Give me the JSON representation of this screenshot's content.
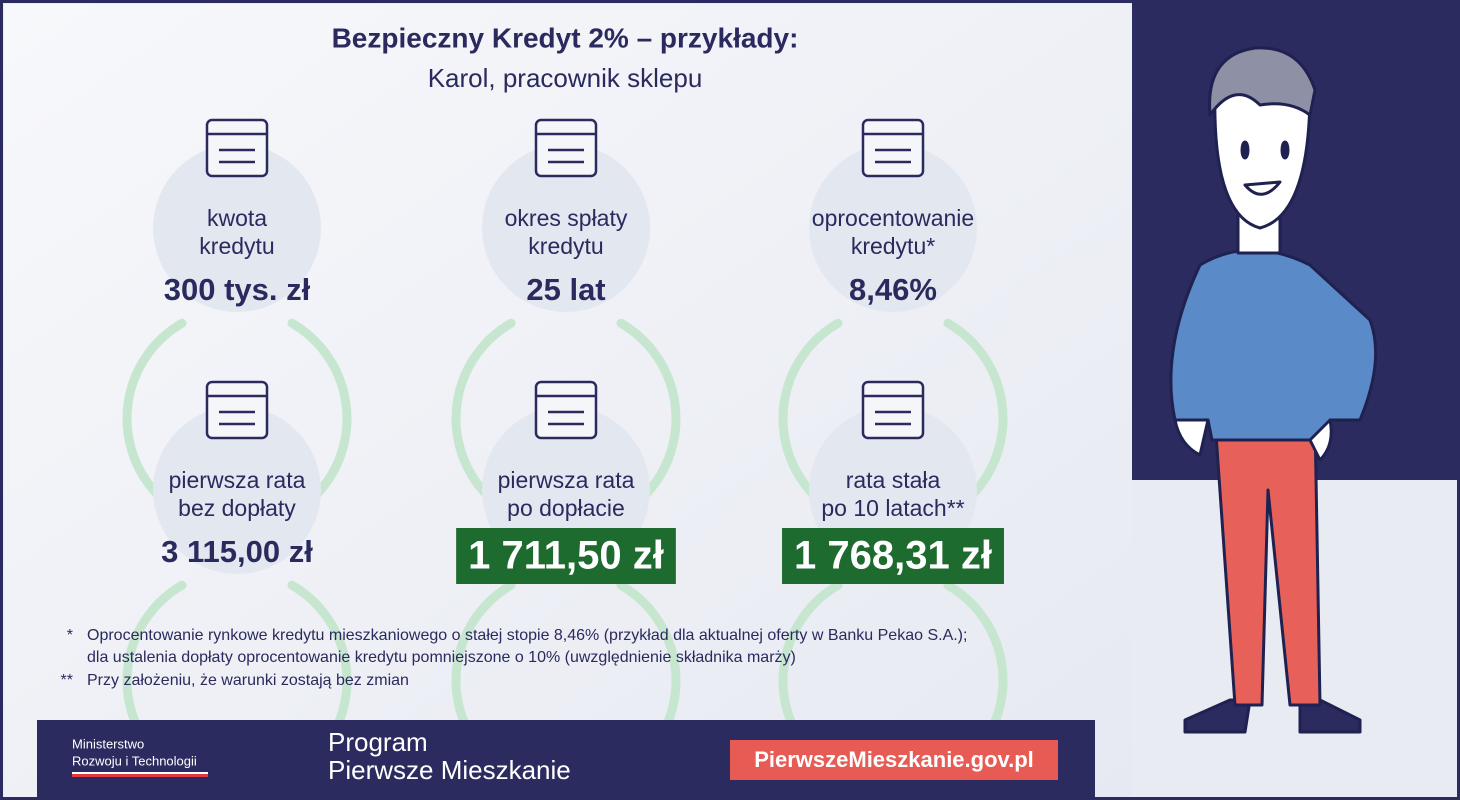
{
  "header": {
    "title": "Bezpieczny Kredyt 2% – przykłady:",
    "subtitle": "Karol, pracownik sklepu"
  },
  "cards": [
    {
      "label": [
        "kwota",
        "kredytu"
      ],
      "value": "300 tys. zł",
      "highlight": false
    },
    {
      "label": [
        "okres spłaty",
        "kredytu"
      ],
      "value": "25 lat",
      "highlight": false
    },
    {
      "label": [
        "oprocentowanie",
        "kredytu*"
      ],
      "value": "8,46%",
      "highlight": false
    },
    {
      "label": [
        "pierwsza rata",
        "bez dopłaty"
      ],
      "value": "3 115,00 zł",
      "highlight": false
    },
    {
      "label": [
        "pierwsza rata",
        "po dopłacie"
      ],
      "value": "1 711,50 zł",
      "highlight": true
    },
    {
      "label": [
        "rata stała",
        "po 10 latach**"
      ],
      "value": "1 768,31 zł",
      "highlight": true
    }
  ],
  "footnotes": [
    {
      "marker": "*",
      "lines": [
        "Oprocentowanie rynkowe kredytu mieszkaniowego o stałej stopie 8,46% (przykład dla aktualnej oferty w Banku Pekao S.A.);",
        "dla ustalenia dopłaty oprocentowanie kredytu pomniejszone o 10% (uwzględnienie składnika marży)"
      ]
    },
    {
      "marker": "**",
      "lines": [
        "Przy założeniu, że warunki zostają bez zmian"
      ]
    }
  ],
  "footer": {
    "ministry": [
      "Ministerstwo",
      "Rozwoju i Technologii"
    ],
    "program": [
      "Program",
      "Pierwsze Mieszkanie"
    ],
    "url": "PierwszeMieszkanie.gov.pl"
  }
}
